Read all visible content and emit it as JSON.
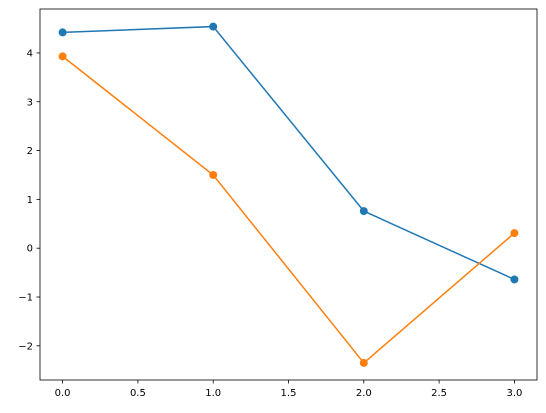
{
  "chart_data": {
    "type": "line",
    "markers": true,
    "x": [
      0,
      1,
      2,
      3
    ],
    "series": [
      {
        "color": "#1f77b4",
        "values": [
          4.42,
          4.54,
          0.76,
          -0.64
        ]
      },
      {
        "color": "#ff7f0e",
        "values": [
          3.93,
          1.5,
          -2.35,
          0.31
        ]
      }
    ],
    "xlim": [
      -0.15,
      3.15
    ],
    "xticks": [
      {
        "value": 0,
        "label": "0.0"
      },
      {
        "value": 0.5,
        "label": "0.5"
      },
      {
        "value": 1,
        "label": "1.0"
      },
      {
        "value": 1.5,
        "label": "1.5"
      },
      {
        "value": 2,
        "label": "2.0"
      },
      {
        "value": 2.5,
        "label": "2.5"
      },
      {
        "value": 3,
        "label": "3.0"
      }
    ],
    "ylim": [
      -2.7,
      4.9
    ],
    "yticks": [
      {
        "value": -2,
        "label": "−2"
      },
      {
        "value": -1,
        "label": "−1"
      },
      0,
      1,
      2,
      3,
      4
    ],
    "grid": false
  }
}
